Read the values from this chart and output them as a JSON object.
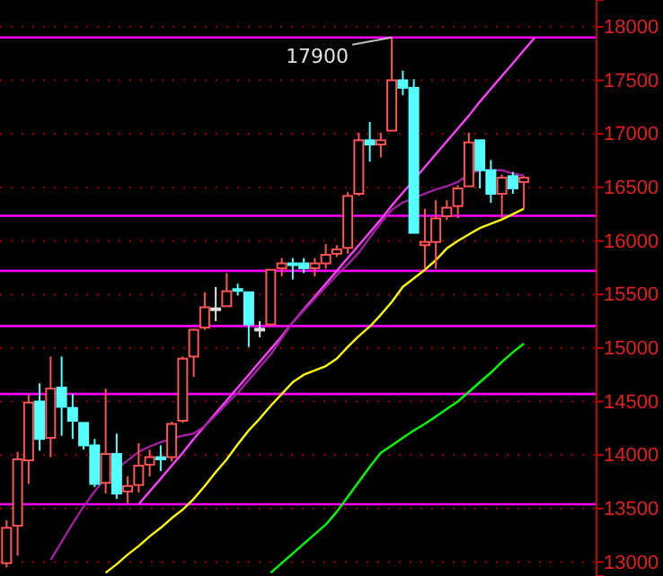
{
  "chart_data": {
    "type": "candlestick",
    "categories": [
      null,
      null,
      null,
      null,
      null,
      null,
      null,
      null,
      null,
      null,
      null,
      null,
      null,
      null,
      null,
      null,
      null,
      null,
      null,
      null,
      null,
      null,
      null,
      null,
      null,
      null,
      null,
      null,
      null,
      null,
      null,
      null,
      null,
      null,
      null,
      null,
      null,
      null,
      null,
      null,
      null,
      null,
      null,
      null,
      null,
      null,
      null,
      null,
      null,
      null,
      null,
      null,
      null,
      null
    ],
    "ohlc": [
      [
        12990,
        13390,
        12950,
        13320
      ],
      [
        13340,
        14030,
        13060,
        13960
      ],
      [
        13950,
        14570,
        13730,
        14490
      ],
      [
        14500,
        14670,
        14040,
        14150
      ],
      [
        14160,
        14920,
        13980,
        14620
      ],
      [
        14630,
        14920,
        14180,
        14450
      ],
      [
        14440,
        14570,
        14150,
        14320
      ],
      [
        14300,
        14300,
        14050,
        14090
      ],
      [
        14090,
        14150,
        13700,
        13730
      ],
      [
        13740,
        14620,
        13640,
        14010
      ],
      [
        14010,
        14200,
        13590,
        13640
      ],
      [
        13660,
        13800,
        13540,
        13710
      ],
      [
        13720,
        14110,
        13650,
        13900
      ],
      [
        13910,
        14050,
        13800,
        13980
      ],
      [
        13980,
        14090,
        13850,
        13960
      ],
      [
        13980,
        14310,
        13940,
        14290
      ],
      [
        14320,
        14920,
        14300,
        14900
      ],
      [
        14920,
        15180,
        14730,
        15170
      ],
      [
        15190,
        15520,
        15170,
        15380
      ],
      [
        15370,
        15570,
        15250,
        15370
      ],
      [
        15390,
        15700,
        15390,
        15530
      ],
      [
        15550,
        15600,
        15490,
        15540
      ],
      [
        15520,
        15520,
        15010,
        15220
      ],
      [
        15180,
        15250,
        15100,
        15180
      ],
      [
        15220,
        15730,
        15210,
        15730
      ],
      [
        15745,
        15840,
        15670,
        15790
      ],
      [
        15790,
        15840,
        15640,
        15785
      ],
      [
        15790,
        15840,
        15700,
        15745
      ],
      [
        15745,
        15840,
        15670,
        15790
      ],
      [
        15790,
        15970,
        15740,
        15870
      ],
      [
        15880,
        15960,
        15850,
        15920
      ],
      [
        15935,
        16455,
        15880,
        16420
      ],
      [
        16440,
        17010,
        16420,
        16940
      ],
      [
        16940,
        17110,
        16740,
        16900
      ],
      [
        16900,
        17010,
        16780,
        16940
      ],
      [
        17030,
        17900,
        17030,
        17500
      ],
      [
        17500,
        17590,
        17360,
        17430
      ],
      [
        17430,
        17510,
        16070,
        16075
      ],
      [
        15960,
        16300,
        15740,
        15990
      ],
      [
        15990,
        16380,
        15740,
        16210
      ],
      [
        16230,
        16380,
        16195,
        16310
      ],
      [
        16325,
        16520,
        16215,
        16490
      ],
      [
        16510,
        17010,
        16510,
        16920
      ],
      [
        16940,
        16940,
        16490,
        16660
      ],
      [
        16660,
        16755,
        16355,
        16440
      ],
      [
        16440,
        16620,
        16215,
        16590
      ],
      [
        16605,
        16645,
        16440,
        16490
      ],
      [
        16550,
        16605,
        16300,
        16590
      ],
      null,
      null,
      null,
      null,
      null,
      null
    ],
    "series": [
      {
        "type": "line",
        "color": "#ff40ff",
        "values": [
          null,
          null,
          null,
          null,
          null,
          null,
          null,
          null,
          null,
          null,
          null,
          null,
          13540,
          13660,
          13780,
          13900,
          14020,
          14150,
          14270,
          14390,
          14510,
          14630,
          14750,
          14870,
          14990,
          15110,
          15240,
          15360,
          15480,
          15600,
          15720,
          15840,
          15960,
          16080,
          16200,
          16330,
          16450,
          16570,
          16690,
          16810,
          16930,
          17050,
          17170,
          17300,
          17420,
          17540,
          17660,
          17780,
          17900,
          null,
          null,
          null,
          null,
          null
        ]
      },
      {
        "type": "line",
        "color": "#a020a0",
        "values": [
          null,
          null,
          null,
          null,
          13020,
          13190,
          13360,
          13520,
          13660,
          13790,
          13870,
          13950,
          14030,
          14080,
          14120,
          14150,
          14180,
          14200,
          14270,
          14370,
          14480,
          14580,
          14700,
          14820,
          14940,
          15090,
          15240,
          15350,
          15460,
          15570,
          15680,
          15780,
          15890,
          16030,
          16170,
          16290,
          16360,
          16400,
          16440,
          16480,
          16510,
          16550,
          16620,
          16660,
          16660,
          16660,
          16630,
          16610,
          null,
          null,
          null,
          null,
          null,
          null
        ]
      },
      {
        "type": "line",
        "color": "#ffff00",
        "values": [
          null,
          null,
          null,
          null,
          null,
          null,
          null,
          null,
          null,
          12900,
          12980,
          13070,
          13150,
          13240,
          13320,
          13410,
          13490,
          13590,
          13710,
          13840,
          13960,
          14100,
          14230,
          14340,
          14460,
          14570,
          14680,
          14750,
          14790,
          14830,
          14900,
          15010,
          15110,
          15200,
          15310,
          15430,
          15570,
          15650,
          15730,
          15820,
          15930,
          16000,
          16060,
          16120,
          16160,
          16200,
          16250,
          16300,
          null,
          null,
          null,
          null,
          null,
          null
        ]
      },
      {
        "type": "line",
        "color": "#00ff00",
        "values": [
          null,
          null,
          null,
          null,
          null,
          null,
          null,
          null,
          null,
          null,
          null,
          null,
          null,
          null,
          null,
          null,
          null,
          null,
          null,
          null,
          null,
          null,
          null,
          null,
          12900,
          12990,
          13080,
          13170,
          13260,
          13350,
          13470,
          13610,
          13750,
          13890,
          14020,
          14090,
          14160,
          14230,
          14290,
          14360,
          14430,
          14500,
          14590,
          14680,
          14770,
          14870,
          14960,
          15040,
          null,
          null,
          null,
          null,
          null,
          null
        ]
      }
    ],
    "ylim": [
      12870,
      18250
    ],
    "yticks": [
      13000,
      13500,
      14000,
      14500,
      15000,
      15500,
      16000,
      16500,
      17000,
      17500,
      18000
    ],
    "grid": "y",
    "tick_labels": "y",
    "ref_lines": [
      {
        "axis": "y",
        "value": 17900,
        "color": "#ff00ff"
      },
      {
        "axis": "y",
        "value": 16235,
        "color": "#ff00ff"
      },
      {
        "axis": "y",
        "value": 15720,
        "color": "#ff00ff"
      },
      {
        "axis": "y",
        "value": 15205,
        "color": "#ff00ff"
      },
      {
        "axis": "y",
        "value": 14570,
        "color": "#ff00ff"
      },
      {
        "axis": "y",
        "value": 13540,
        "color": "#ff00ff"
      }
    ],
    "annotations": [
      {
        "text": "17900",
        "y": 17900
      }
    ]
  }
}
